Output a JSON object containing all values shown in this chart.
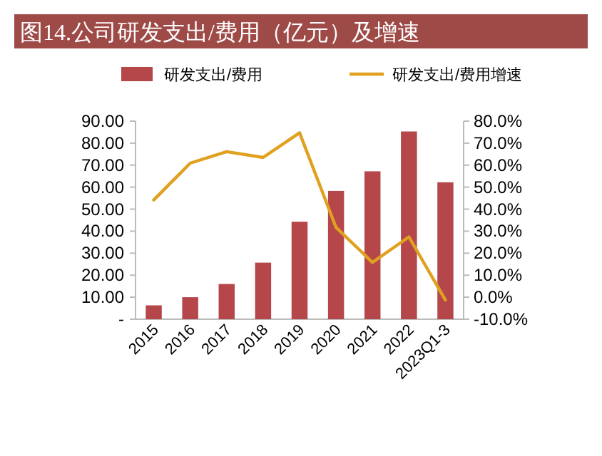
{
  "chart_data": {
    "type": "bar",
    "title": "图14.公司研发支出/费用（亿元）及增速",
    "categories": [
      "2015",
      "2016",
      "2017",
      "2018",
      "2019",
      "2020",
      "2021",
      "2022",
      "2023Q1-3"
    ],
    "series": [
      {
        "name": "研发支出/费用",
        "color": "#b5474a",
        "values": [
          6.3,
          10.0,
          16.0,
          25.7,
          44.3,
          58.3,
          67.2,
          85.3,
          62.2
        ]
      },
      {
        "name": "研发支出/费用增速",
        "type": "line",
        "axis": "y2",
        "color": "#e0a020",
        "values": [
          44.2,
          60.9,
          66.1,
          63.5,
          74.7,
          31.7,
          15.8,
          27.4,
          -1.3
        ]
      }
    ],
    "ylim": [
      0,
      90
    ],
    "yticks": [
      {
        "value": 0,
        "label": "-"
      },
      {
        "value": 10,
        "label": "10.00"
      },
      {
        "value": 20,
        "label": "20.00"
      },
      {
        "value": 30,
        "label": "30.00"
      },
      {
        "value": 40,
        "label": "40.00"
      },
      {
        "value": 50,
        "label": "50.00"
      },
      {
        "value": 60,
        "label": "60.00"
      },
      {
        "value": 70,
        "label": "70.00"
      },
      {
        "value": 80,
        "label": "80.00"
      },
      {
        "value": 90,
        "label": "90.00"
      }
    ],
    "y2lim": [
      -10,
      80
    ],
    "y2ticks": [
      {
        "value": -10,
        "label": "-10.0%"
      },
      {
        "value": 0,
        "label": "0.0%"
      },
      {
        "value": 10,
        "label": "10.0%"
      },
      {
        "value": 20,
        "label": "20.0%"
      },
      {
        "value": 30,
        "label": "30.0%"
      },
      {
        "value": 40,
        "label": "40.0%"
      },
      {
        "value": 50,
        "label": "50.0%"
      },
      {
        "value": 60,
        "label": "60.0%"
      },
      {
        "value": 70,
        "label": "70.0%"
      },
      {
        "value": 80,
        "label": "80.0%"
      }
    ],
    "legend": "top",
    "grid": false
  }
}
